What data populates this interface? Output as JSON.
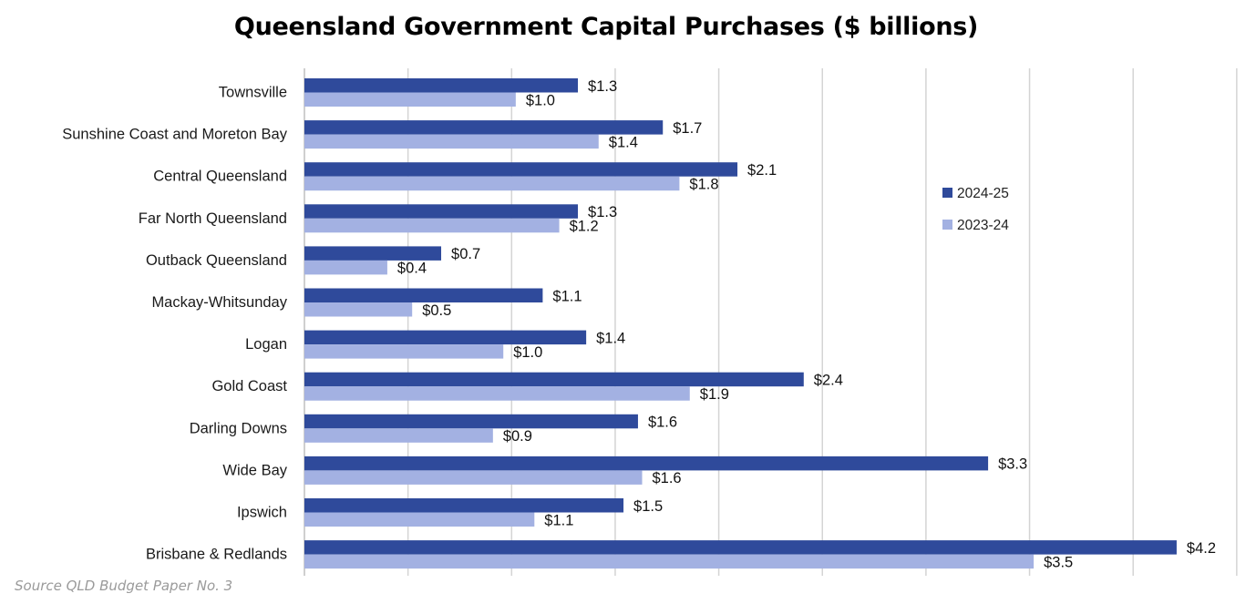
{
  "chart_data": {
    "type": "bar",
    "orientation": "horizontal",
    "title": "Queensland Government Capital Purchases ($ billions)",
    "source": "Source QLD Budget Paper No. 3",
    "categories": [
      "Townsville",
      "Sunshine Coast and Moreton Bay",
      "Central Queensland",
      "Far North Queensland",
      "Outback Queensland",
      "Mackay-Whitsunday",
      "Logan",
      "Gold Coast",
      "Darling Downs",
      "Wide Bay",
      "Ipswich",
      "Brisbane & Redlands"
    ],
    "series": [
      {
        "name": "2024-25",
        "color": "#2f4a9b",
        "values": [
          1.32,
          1.73,
          2.09,
          1.32,
          0.66,
          1.15,
          1.36,
          2.41,
          1.61,
          3.3,
          1.54,
          4.21
        ],
        "labels": [
          "$1.3",
          "$1.7",
          "$2.1",
          "$1.3",
          "$0.7",
          "$1.1",
          "$1.4",
          "$2.4",
          "$1.6",
          "$3.3",
          "$1.5",
          "$4.2"
        ]
      },
      {
        "name": "2023-24",
        "color": "#a3b1e2",
        "values": [
          1.02,
          1.42,
          1.81,
          1.23,
          0.4,
          0.52,
          0.96,
          1.86,
          0.91,
          1.63,
          1.11,
          3.52
        ],
        "labels": [
          "$1.0",
          "$1.4",
          "$1.8",
          "$1.2",
          "$0.4",
          "$0.5",
          "$1.0",
          "$1.9",
          "$0.9",
          "$1.6",
          "$1.1",
          "$3.5"
        ]
      }
    ],
    "xlim": [
      0,
      4.5
    ],
    "grid": "vertical",
    "legend_position": "right"
  }
}
